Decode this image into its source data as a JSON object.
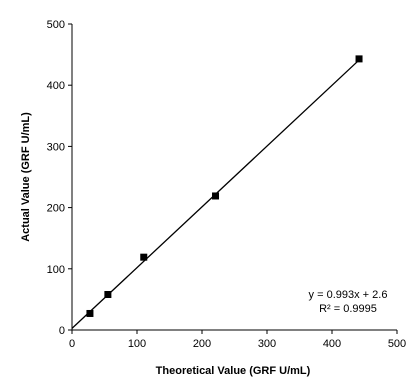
{
  "chart_data": {
    "type": "scatter",
    "xlabel": "Theoretical Value (GRF U/mL)",
    "ylabel": "Actual Value (GRF U/mL)",
    "xlim": [
      0,
      500
    ],
    "ylim": [
      0,
      500
    ],
    "xticks": [
      0,
      100,
      200,
      300,
      400,
      500
    ],
    "yticks": [
      0,
      100,
      200,
      300,
      400,
      500
    ],
    "grid": false,
    "series": [
      {
        "marker": "square",
        "color": "#000000",
        "x": [
          27.6,
          55.2,
          110.4,
          220.8,
          441.6
        ],
        "y": [
          27,
          58,
          119,
          219,
          443
        ]
      }
    ],
    "fit": {
      "slope": 0.993,
      "intercept": 2.6,
      "x_range": [
        0,
        441.6
      ],
      "color": "#000000"
    },
    "annotations": {
      "equation": "y = 0.993x + 2.6",
      "r_squared": "R² = 0.9995"
    }
  }
}
